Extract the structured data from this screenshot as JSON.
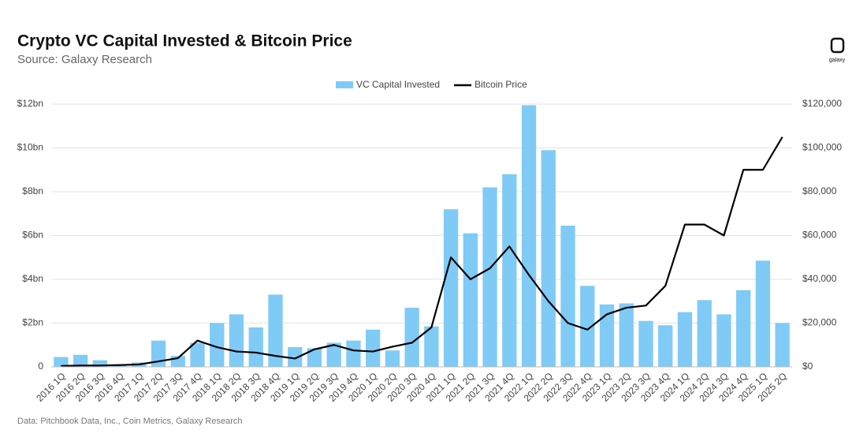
{
  "chart_data": {
    "type": "bar",
    "title": "Crypto VC Capital Invested & Bitcoin Price",
    "subtitle": "Source: Galaxy Research",
    "note": "Data: Pitchbook Data, Inc., Coin Metrics, Galaxy Research",
    "logo_text": "galaxy",
    "legend": "top",
    "grid": true,
    "categories": [
      "2016 1Q",
      "2016 2Q",
      "2016 3Q",
      "2016 4Q",
      "2017 1Q",
      "2017 2Q",
      "2017 3Q",
      "2017 4Q",
      "2018 1Q",
      "2018 2Q",
      "2018 3Q",
      "2018 4Q",
      "2019 1Q",
      "2019 2Q",
      "2019 3Q",
      "2019 4Q",
      "2020 1Q",
      "2020 2Q",
      "2020 3Q",
      "2020 4Q",
      "2021 1Q",
      "2021 2Q",
      "2021 3Q",
      "2021 4Q",
      "2022 1Q",
      "2022 2Q",
      "2022 3Q",
      "2022 4Q",
      "2023 1Q",
      "2023 2Q",
      "2023 3Q",
      "2023 4Q",
      "2024 1Q",
      "2024 2Q",
      "2024 3Q",
      "2024 4Q",
      "2025 1Q",
      "2025 2Q"
    ],
    "series": [
      {
        "name": "VC Capital Invested",
        "type": "bar",
        "color": "#7fcbf5",
        "axis": "y",
        "values": [
          0.45,
          0.55,
          0.3,
          0.05,
          0.2,
          1.2,
          0.5,
          1.1,
          2.0,
          2.4,
          1.8,
          3.3,
          0.9,
          0.85,
          1.1,
          1.2,
          1.7,
          0.75,
          2.7,
          1.85,
          7.2,
          6.1,
          8.2,
          8.8,
          11.95,
          9.9,
          6.45,
          3.7,
          2.85,
          2.9,
          2.1,
          1.9,
          2.5,
          3.05,
          2.4,
          3.5,
          4.85,
          2.0
        ]
      },
      {
        "name": "Bitcoin Price",
        "type": "line",
        "color": "#000000",
        "axis": "y2",
        "values": [
          420,
          600,
          610,
          800,
          1100,
          2500,
          4000,
          12000,
          9000,
          7000,
          6500,
          5000,
          3800,
          8000,
          10000,
          7500,
          7000,
          9200,
          11000,
          18000,
          50000,
          40000,
          45000,
          55000,
          42000,
          30000,
          20000,
          17000,
          24000,
          27000,
          28000,
          37000,
          65000,
          65000,
          60000,
          90000,
          90000,
          105000
        ]
      }
    ],
    "ylim": [
      0,
      12
    ],
    "yticks": [
      0,
      {
        "value": 2,
        "label": "$2bn"
      },
      {
        "value": 4,
        "label": "$4bn"
      },
      {
        "value": 6,
        "label": "$6bn"
      },
      {
        "value": 8,
        "label": "$8bn"
      },
      {
        "value": 10,
        "label": "$10bn"
      },
      {
        "value": 12,
        "label": "$12bn"
      }
    ],
    "y2lim": [
      0,
      120000
    ],
    "y2ticks": [
      {
        "value": 0,
        "label": "$0"
      },
      {
        "value": 20000,
        "label": "$20,000"
      },
      {
        "value": 40000,
        "label": "$40,000"
      },
      {
        "value": 60000,
        "label": "$60,000"
      },
      {
        "value": 80000,
        "label": "$80,000"
      },
      {
        "value": 100000,
        "label": "$100,000"
      },
      {
        "value": 120000,
        "label": "$120,000"
      }
    ]
  }
}
